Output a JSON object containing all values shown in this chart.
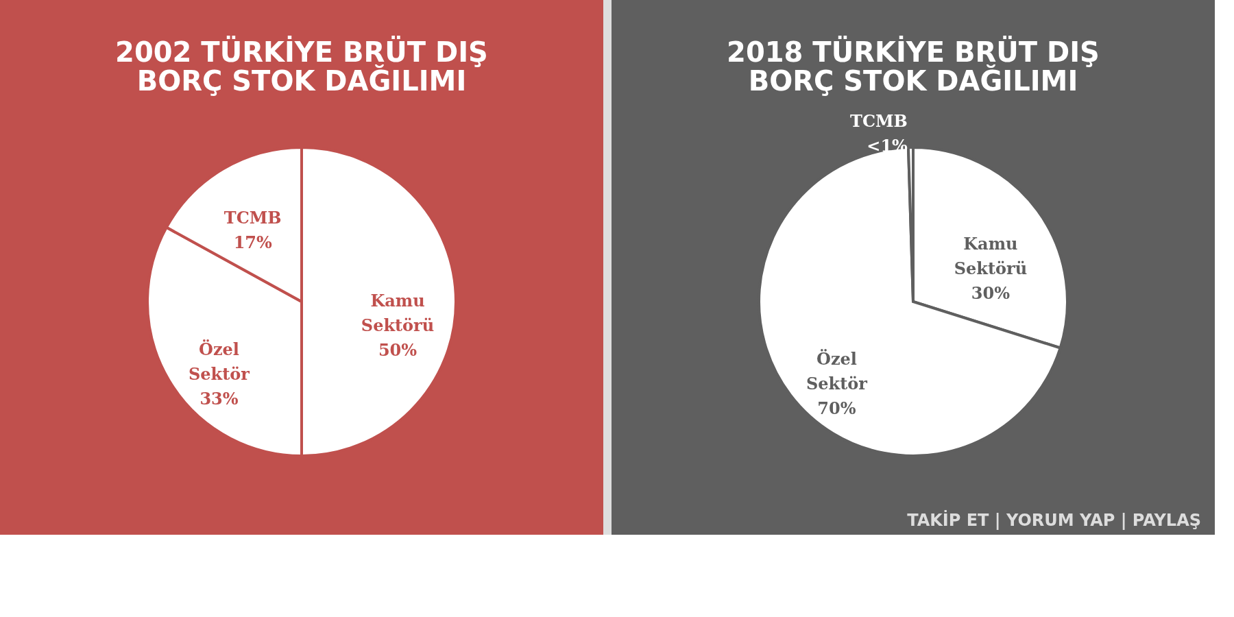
{
  "chart_data": [
    {
      "type": "pie",
      "title": "2002 TÜRKİYE BRÜT DIŞ BORÇ STOK DAĞILIMI",
      "categories": [
        "Kamu Sektörü",
        "Özel Sektör",
        "TCMB"
      ],
      "values": [
        50,
        33,
        17
      ],
      "value_labels": [
        "50%",
        "33%",
        "17%"
      ],
      "colors": [
        "#ffffff",
        "#ffffff",
        "#ffffff"
      ]
    },
    {
      "type": "pie",
      "title": "2018 TÜRKİYE BRÜT DIŞ BORÇ STOK DAĞILIMI",
      "categories": [
        "Kamu Sektörü",
        "Özel Sektör",
        "TCMB"
      ],
      "values": [
        30,
        70,
        0.5
      ],
      "value_labels": [
        "30%",
        "70%",
        "<1%"
      ],
      "colors": [
        "#ffffff",
        "#ffffff",
        "#ffffff"
      ],
      "annotations": [
        "TAKİP ET | YORUM YAP | PAYLAŞ"
      ]
    }
  ]
}
